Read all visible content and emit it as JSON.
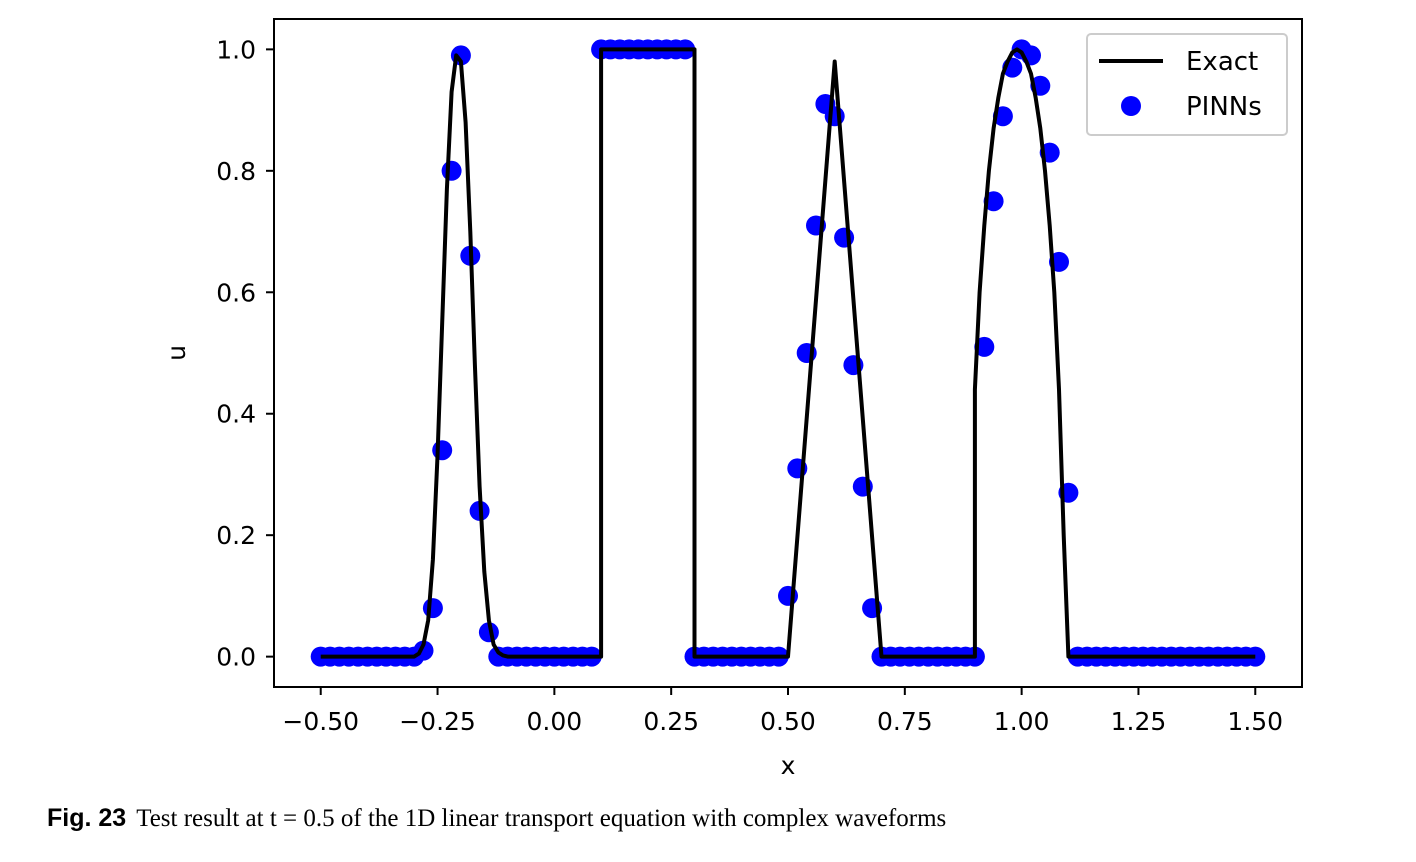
{
  "caption": {
    "label": "Fig. 23",
    "text": "Test result at t = 0.5 of the 1D linear transport equation with complex waveforms"
  },
  "chart_data": {
    "type": "line",
    "title": "",
    "xlabel": "x",
    "ylabel": "u",
    "xlim": [
      -0.6,
      1.6
    ],
    "ylim": [
      -0.05,
      1.05
    ],
    "xticks": [
      "-0.50",
      "-0.25",
      "0.00",
      "0.25",
      "0.50",
      "0.75",
      "1.00",
      "1.25",
      "1.50"
    ],
    "yticks": [
      "0.0",
      "0.2",
      "0.4",
      "0.6",
      "0.8",
      "1.0"
    ],
    "grid": false,
    "legend": {
      "position": "top-right",
      "entries": [
        "Exact",
        "PINNs"
      ]
    },
    "colors": {
      "exact": "#000000",
      "pinns": "#0000ff"
    },
    "series": [
      {
        "name": "Exact",
        "style": "line",
        "x": [
          -0.5,
          -0.3,
          -0.29,
          -0.28,
          -0.27,
          -0.26,
          -0.25,
          -0.24,
          -0.23,
          -0.22,
          -0.21,
          -0.2,
          -0.19,
          -0.18,
          -0.17,
          -0.16,
          -0.15,
          -0.14,
          -0.13,
          -0.12,
          -0.11,
          -0.1,
          -0.08,
          0.1,
          0.1,
          0.3,
          0.3,
          0.5,
          0.6,
          0.7,
          0.9,
          0.9,
          0.91,
          0.92,
          0.93,
          0.94,
          0.95,
          0.96,
          0.97,
          0.98,
          0.99,
          1.0,
          1.01,
          1.02,
          1.03,
          1.04,
          1.05,
          1.06,
          1.07,
          1.08,
          1.09,
          1.1,
          1.1,
          1.5
        ],
        "y": [
          0.0,
          0.0,
          0.005,
          0.02,
          0.06,
          0.16,
          0.33,
          0.55,
          0.77,
          0.93,
          0.99,
          0.98,
          0.88,
          0.7,
          0.48,
          0.28,
          0.14,
          0.06,
          0.02,
          0.007,
          0.002,
          0.0,
          0.0,
          0.0,
          1.0,
          1.0,
          0.0,
          0.0,
          0.98,
          0.0,
          0.0,
          0.44,
          0.6,
          0.71,
          0.8,
          0.87,
          0.92,
          0.96,
          0.98,
          0.995,
          1.0,
          0.995,
          0.98,
          0.96,
          0.92,
          0.87,
          0.8,
          0.71,
          0.6,
          0.44,
          0.2,
          0.0,
          0.0,
          0.0
        ]
      },
      {
        "name": "PINNs",
        "style": "scatter",
        "x": [
          -0.5,
          -0.48,
          -0.46,
          -0.44,
          -0.42,
          -0.4,
          -0.38,
          -0.36,
          -0.34,
          -0.32,
          -0.3,
          -0.28,
          -0.26,
          -0.24,
          -0.22,
          -0.2,
          -0.18,
          -0.16,
          -0.14,
          -0.12,
          -0.1,
          -0.08,
          -0.06,
          -0.04,
          -0.02,
          0.0,
          0.02,
          0.04,
          0.06,
          0.08,
          0.1,
          0.12,
          0.14,
          0.16,
          0.18,
          0.2,
          0.22,
          0.24,
          0.26,
          0.28,
          0.3,
          0.32,
          0.34,
          0.36,
          0.38,
          0.4,
          0.42,
          0.44,
          0.46,
          0.48,
          0.5,
          0.52,
          0.54,
          0.56,
          0.58,
          0.6,
          0.62,
          0.64,
          0.66,
          0.68,
          0.7,
          0.72,
          0.74,
          0.76,
          0.78,
          0.8,
          0.82,
          0.84,
          0.86,
          0.88,
          0.9,
          0.92,
          0.94,
          0.96,
          0.98,
          1.0,
          1.02,
          1.04,
          1.06,
          1.08,
          1.1,
          1.12,
          1.14,
          1.16,
          1.18,
          1.2,
          1.22,
          1.24,
          1.26,
          1.28,
          1.3,
          1.32,
          1.34,
          1.36,
          1.38,
          1.4,
          1.42,
          1.44,
          1.46,
          1.48,
          1.5
        ],
        "y": [
          0.0,
          0.0,
          0.0,
          0.0,
          0.0,
          0.0,
          0.0,
          0.0,
          0.0,
          0.0,
          0.0,
          0.01,
          0.08,
          0.34,
          0.8,
          0.99,
          0.66,
          0.24,
          0.04,
          0.0,
          0.0,
          0.0,
          0.0,
          0.0,
          0.0,
          0.0,
          0.0,
          0.0,
          0.0,
          0.0,
          1.0,
          1.0,
          1.0,
          1.0,
          1.0,
          1.0,
          1.0,
          1.0,
          1.0,
          1.0,
          0.0,
          0.0,
          0.0,
          0.0,
          0.0,
          0.0,
          0.0,
          0.0,
          0.0,
          0.0,
          0.1,
          0.31,
          0.5,
          0.71,
          0.91,
          0.89,
          0.69,
          0.48,
          0.28,
          0.08,
          0.0,
          0.0,
          0.0,
          0.0,
          0.0,
          0.0,
          0.0,
          0.0,
          0.0,
          0.0,
          0.0,
          0.51,
          0.75,
          0.89,
          0.97,
          1.0,
          0.99,
          0.94,
          0.83,
          0.65,
          0.27,
          0.0,
          0.0,
          0.0,
          0.0,
          0.0,
          0.0,
          0.0,
          0.0,
          0.0,
          0.0,
          0.0,
          0.0,
          0.0,
          0.0,
          0.0,
          0.0,
          0.0,
          0.0,
          0.0,
          0.0
        ]
      }
    ]
  }
}
